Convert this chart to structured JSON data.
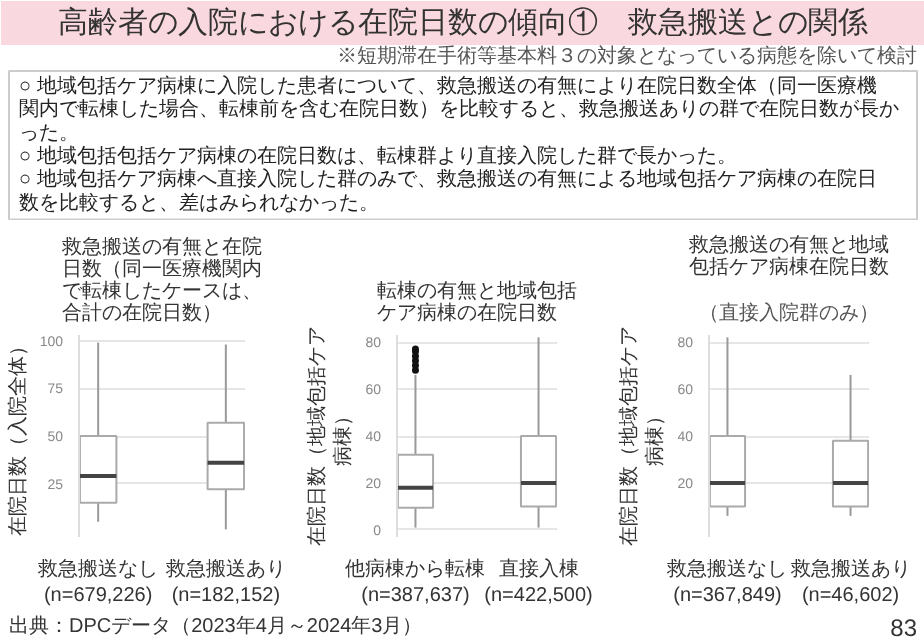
{
  "chart_data": [
    {
      "type": "other",
      "title": "高齢者の入院における在院日数の傾向①　救急搬送との関係",
      "subtitle": "※短期滞在手術等基本料３の対象となっている病態を除いて検討",
      "annotations": [
        "○ 地域包括ケア病棟に入院した患者について、救急搬送の有無により在院日数全体（同一医療機関内で転棟した場合、転棟前を含む在院日数）を比較すると、救急搬送ありの群で在院日数が長かった。",
        "○ 地域包括包括ケア病棟の在院日数は、転棟群より直接入院した群で長かった。",
        "○ 地域包括ケア病棟へ直接入院した群のみで、救急搬送の有無による地域包括ケア病棟の在院日数を比較すると、差はみられなかった。",
        "出典：DPCデータ（2023年4月～2024年3月）",
        "83"
      ]
    },
    {
      "type": "box",
      "title": "救急搬送の有無と在院日数（同一医療機関内で転棟したケースは、合計の在院日数）",
      "ylabel": "在院日数（入院全体）",
      "categories": [
        "救急搬送なし\n(n=679,226)",
        "救急搬送あり\n(n=182,152)"
      ],
      "boxes": [
        {
          "low": 5,
          "q1": 15,
          "median": 29,
          "q3": 50,
          "high": 99
        },
        {
          "low": 1,
          "q1": 22,
          "median": 36,
          "q3": 57,
          "high": 98
        }
      ],
      "ylim": [
        -3,
        103
      ],
      "yticks": [
        25,
        50,
        75,
        100
      ],
      "grid": "y"
    },
    {
      "type": "box",
      "title": "転棟の有無と地域包括ケア病棟の在院日数",
      "ylabel": "在院日数（地域包括ケア病棟）",
      "categories": [
        "他病棟から転棟\n(n=387,637)",
        "直接入棟\n(n=422,500)"
      ],
      "boxes": [
        {
          "low": 1,
          "q1": 9.5,
          "median": 18,
          "q3": 32,
          "high": 66,
          "outliers": [
            68,
            70,
            72,
            74,
            76,
            77
          ]
        },
        {
          "low": 1,
          "q1": 10,
          "median": 20,
          "q3": 40,
          "high": 82
        }
      ],
      "ylim": [
        -3,
        83
      ],
      "yticks": [
        0,
        20,
        40,
        60,
        80
      ],
      "grid": "y"
    },
    {
      "type": "box",
      "title": "救急搬送の有無と地域包括ケア病棟在院日数",
      "subtitle": "（直接入院群のみ）",
      "ylabel": "在院日数（地域包括ケア病棟）",
      "categories": [
        "救急搬送なし\n(n=367,849)",
        "救急搬送あり\n(n=46,602)"
      ],
      "boxes": [
        {
          "low": 6,
          "q1": 10,
          "median": 20,
          "q3": 40,
          "high": 82
        },
        {
          "low": 6,
          "q1": 10,
          "median": 20,
          "q3": 38,
          "high": 66
        }
      ],
      "ylim": [
        -3,
        83
      ],
      "yticks": [
        20,
        40,
        60,
        80
      ],
      "grid": "y"
    }
  ]
}
